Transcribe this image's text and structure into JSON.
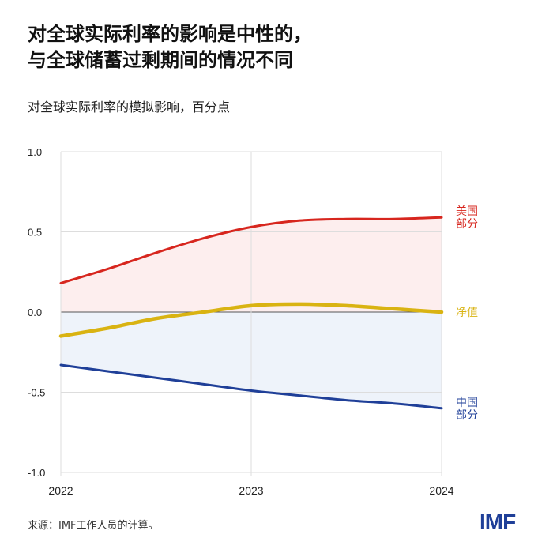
{
  "title_line1": "对全球实际利率的影响是中性的，",
  "title_line2": "与全球储蓄过剩期间的情况不同",
  "subtitle": "对全球实际利率的模拟影响，百分点",
  "source": "来源：IMF工作人员的计算。",
  "logo": "IMF",
  "chart_data": {
    "type": "line",
    "x": [
      2022,
      2022.25,
      2022.5,
      2022.75,
      2023,
      2023.25,
      2023.5,
      2023.75,
      2024
    ],
    "xticks": [
      "2022",
      "2023",
      "2024"
    ],
    "yticks": [
      "1.0",
      "0.5",
      "0.0",
      "-0.5",
      "-1.0"
    ],
    "ylim": [
      -1,
      1
    ],
    "grid": true,
    "series": [
      {
        "name": "美国部分",
        "label_lines": [
          "美国",
          "部分"
        ],
        "color": "#d7261e",
        "values": [
          0.18,
          0.27,
          0.37,
          0.46,
          0.53,
          0.57,
          0.58,
          0.58,
          0.59
        ]
      },
      {
        "name": "净值",
        "label_lines": [
          "净值"
        ],
        "color": "#d9b312",
        "values": [
          -0.15,
          -0.1,
          -0.04,
          0.0,
          0.04,
          0.05,
          0.04,
          0.02,
          0.0
        ]
      },
      {
        "name": "中国部分",
        "label_lines": [
          "中国",
          "部分"
        ],
        "color": "#1f3f98",
        "values": [
          -0.33,
          -0.37,
          -0.41,
          -0.45,
          -0.49,
          -0.52,
          -0.55,
          -0.57,
          -0.6
        ]
      }
    ],
    "fills": {
      "positive": "#fdeeee",
      "negative": "#eef3fa"
    }
  }
}
